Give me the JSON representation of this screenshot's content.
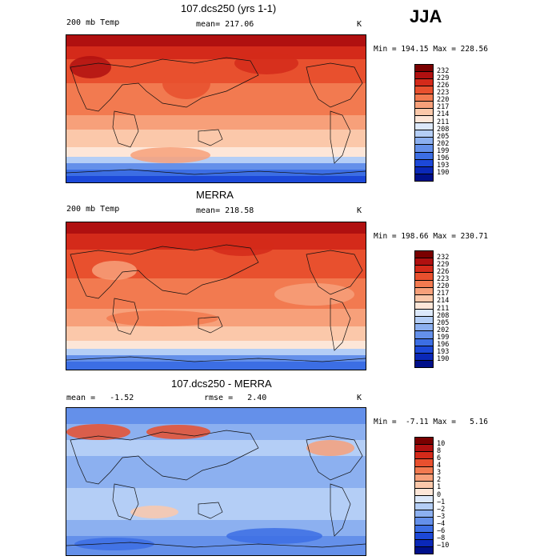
{
  "season": "JJA",
  "panels": [
    {
      "title": "107.dcs250 (yrs 1-1)",
      "left_label": "200 mb Temp",
      "mid_label": "mean= 217.06",
      "units": "K",
      "minmax": "Min = 194.15 Max = 228.56",
      "colorbar": {
        "ticks": [
          "232",
          "229",
          "226",
          "223",
          "220",
          "217",
          "214",
          "211",
          "208",
          "205",
          "202",
          "199",
          "196",
          "193",
          "190"
        ],
        "colors": [
          "#7a0000",
          "#b01010",
          "#d42a1a",
          "#e8502e",
          "#f27a50",
          "#f7a07a",
          "#fbc8aa",
          "#fde6d8",
          "#dce8fa",
          "#b4cef6",
          "#8cb0f0",
          "#6490ea",
          "#3c6ee4",
          "#1c48d8",
          "#0a28b8",
          "#00108a"
        ]
      },
      "map_style": "abs_cold"
    },
    {
      "title": "MERRA",
      "left_label": "200 mb Temp",
      "mid_label": "mean= 218.58",
      "units": "K",
      "minmax": "Min = 198.66 Max = 230.71",
      "colorbar": {
        "ticks": [
          "232",
          "229",
          "226",
          "223",
          "220",
          "217",
          "214",
          "211",
          "208",
          "205",
          "202",
          "199",
          "196",
          "193",
          "190"
        ],
        "colors": [
          "#7a0000",
          "#b01010",
          "#d42a1a",
          "#e8502e",
          "#f27a50",
          "#f7a07a",
          "#fbc8aa",
          "#fde6d8",
          "#dce8fa",
          "#b4cef6",
          "#8cb0f0",
          "#6490ea",
          "#3c6ee4",
          "#1c48d8",
          "#0a28b8",
          "#00108a"
        ]
      },
      "map_style": "abs_warm"
    },
    {
      "title": "107.dcs250 - MERRA",
      "left_label": "mean =   -1.52",
      "mid_label": "rmse =   2.40",
      "units": "K",
      "minmax": "Min =  -7.11 Max =   5.16",
      "colorbar": {
        "ticks": [
          "10",
          "8",
          "6",
          "4",
          "3",
          "2",
          "1",
          "0",
          "−1",
          "−2",
          "−3",
          "−4",
          "−6",
          "−8",
          "−10"
        ],
        "colors": [
          "#7a0000",
          "#b01010",
          "#d42a1a",
          "#e8502e",
          "#f27a50",
          "#f7a07a",
          "#fbc8aa",
          "#fde6d8",
          "#dce8fa",
          "#b4cef6",
          "#8cb0f0",
          "#6490ea",
          "#3c6ee4",
          "#1c48d8",
          "#0a28b8",
          "#00108a"
        ]
      },
      "map_style": "diff"
    }
  ]
}
